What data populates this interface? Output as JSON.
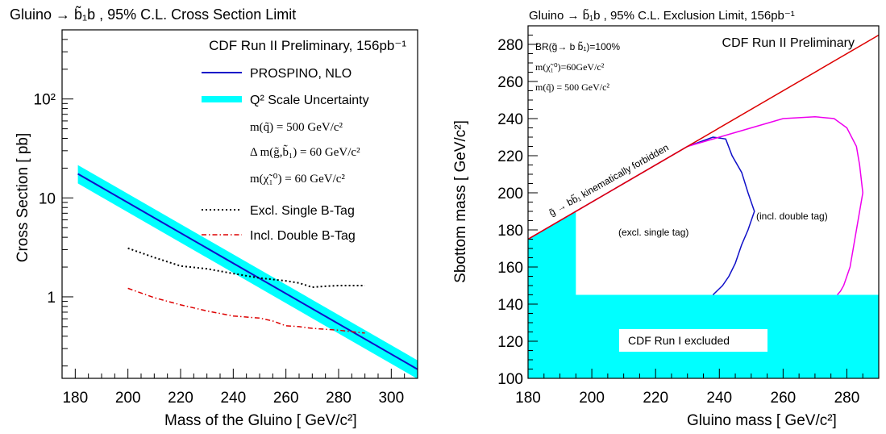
{
  "chart_data": [
    {
      "type": "line",
      "title": "Gluino → b̃₁b , 95% C.L. Cross Section Limit",
      "xlabel": "Mass of the Gluino [ GeV/c²]",
      "ylabel": "Cross Section [ pb]",
      "xlim": [
        175,
        310
      ],
      "ylim": [
        0.15,
        500
      ],
      "yscale": "log",
      "x_ticks": [
        "180",
        "200",
        "220",
        "240",
        "260",
        "280",
        "300"
      ],
      "y_ticks": [
        {
          "value": 1,
          "label": "1"
        },
        {
          "value": 10,
          "label": "10"
        },
        {
          "value": 100,
          "label": "10²"
        }
      ],
      "annotations": {
        "experiment": "CDF Run II Preliminary, 156pb⁻¹",
        "params": [
          "m(q̃) = 500 GeV/c²",
          "Δ m(g̃,b̃₁) = 60 GeV/c²",
          "m(χ̃₁⁰) = 60 GeV/c²"
        ]
      },
      "legend": [
        {
          "label": "PROSPINO, NLO",
          "color": "#1010c8",
          "style": "solid"
        },
        {
          "label": "Q² Scale Uncertainty",
          "color": "#00ffff",
          "style": "band"
        },
        {
          "label": "Excl. Single B-Tag",
          "color": "#000000",
          "style": "dotted"
        },
        {
          "label": "Incl. Double B-Tag",
          "color": "#dd0000",
          "style": "dashdot"
        }
      ],
      "series": [
        {
          "name": "PROSPINO, NLO",
          "x": [
            181,
            310
          ],
          "y": [
            17.5,
            0.185
          ]
        },
        {
          "name": "Q² Scale Uncertainty",
          "x": [
            181,
            310
          ],
          "y_low": [
            14.0,
            0.148
          ],
          "y_high": [
            21.5,
            0.228
          ]
        },
        {
          "name": "Excl. Single B-Tag",
          "x": [
            200,
            210,
            220,
            230,
            240,
            250,
            260,
            265,
            270,
            275,
            280,
            290
          ],
          "y": [
            3.1,
            2.5,
            2.05,
            1.92,
            1.72,
            1.55,
            1.45,
            1.38,
            1.25,
            1.28,
            1.3,
            1.3
          ]
        },
        {
          "name": "Incl. Double B-Tag",
          "x": [
            200,
            210,
            220,
            230,
            240,
            250,
            255,
            260,
            265,
            270,
            280,
            290
          ],
          "y": [
            1.22,
            0.98,
            0.83,
            0.72,
            0.64,
            0.61,
            0.57,
            0.51,
            0.5,
            0.48,
            0.46,
            0.43
          ]
        }
      ]
    },
    {
      "type": "line",
      "title": "Gluino → b̃₁b , 95% C.L. Exclusion Limit, 156pb⁻¹",
      "xlabel": "Gluino mass [ GeV/c²]",
      "ylabel": "Sbottom mass [ GeV/c²]",
      "xlim": [
        180,
        290
      ],
      "ylim": [
        100,
        290
      ],
      "x_ticks": [
        "180",
        "200",
        "220",
        "240",
        "260",
        "280"
      ],
      "y_ticks": [
        "100",
        "120",
        "140",
        "160",
        "180",
        "200",
        "220",
        "240",
        "260",
        "280"
      ],
      "annotations": {
        "experiment": "CDF Run II Preliminary",
        "params": [
          "BR(g̃→ b b̃₁)=100%",
          "m(χ̃₁⁰)=60GeV/c²",
          "m(q̃) = 500 GeV/c²"
        ],
        "kinematic_label": "g̃ → bb̃₁ kinematically forbidden",
        "excl_single_label": "(excl. single tag)",
        "incl_double_label": "(incl. double tag)",
        "run1_label": "CDF Run I excluded"
      },
      "series": [
        {
          "name": "kinematic limit",
          "color": "#dd0000",
          "x": [
            180,
            290
          ],
          "y": [
            175,
            285
          ]
        },
        {
          "name": "CDF Run I excluded",
          "color": "#00ffff",
          "x": [
            180,
            180,
            195,
            195,
            290,
            290
          ],
          "y": [
            100,
            175,
            190,
            145,
            145,
            100
          ]
        },
        {
          "name": "excl. single tag",
          "color": "#1010c8",
          "x": [
            180,
            200,
            215,
            230,
            238,
            242,
            244,
            247,
            249,
            251,
            249,
            247,
            245,
            243,
            241,
            238
          ],
          "y": [
            175,
            195,
            210,
            225,
            230,
            229,
            220,
            211,
            200,
            190,
            180,
            172,
            162,
            155,
            150,
            145
          ]
        },
        {
          "name": "incl. double tag",
          "color": "#ee00ee",
          "x": [
            180,
            200,
            215,
            230,
            240,
            250,
            260,
            270,
            276,
            280,
            283,
            284,
            285,
            284,
            283,
            282,
            281,
            280,
            279,
            278,
            277
          ],
          "y": [
            175,
            195,
            210,
            225,
            230,
            235,
            240,
            241,
            240,
            235,
            225,
            215,
            200,
            190,
            180,
            170,
            160,
            155,
            150,
            147,
            145
          ]
        }
      ]
    }
  ],
  "colors": {
    "nlo": "#1010c8",
    "band": "#00ffff",
    "single": "#000000",
    "double": "#dd0000",
    "kinematic": "#dd0000",
    "run1": "#00ffff",
    "excl_single": "#1010c8",
    "incl_double": "#ee00ee"
  }
}
